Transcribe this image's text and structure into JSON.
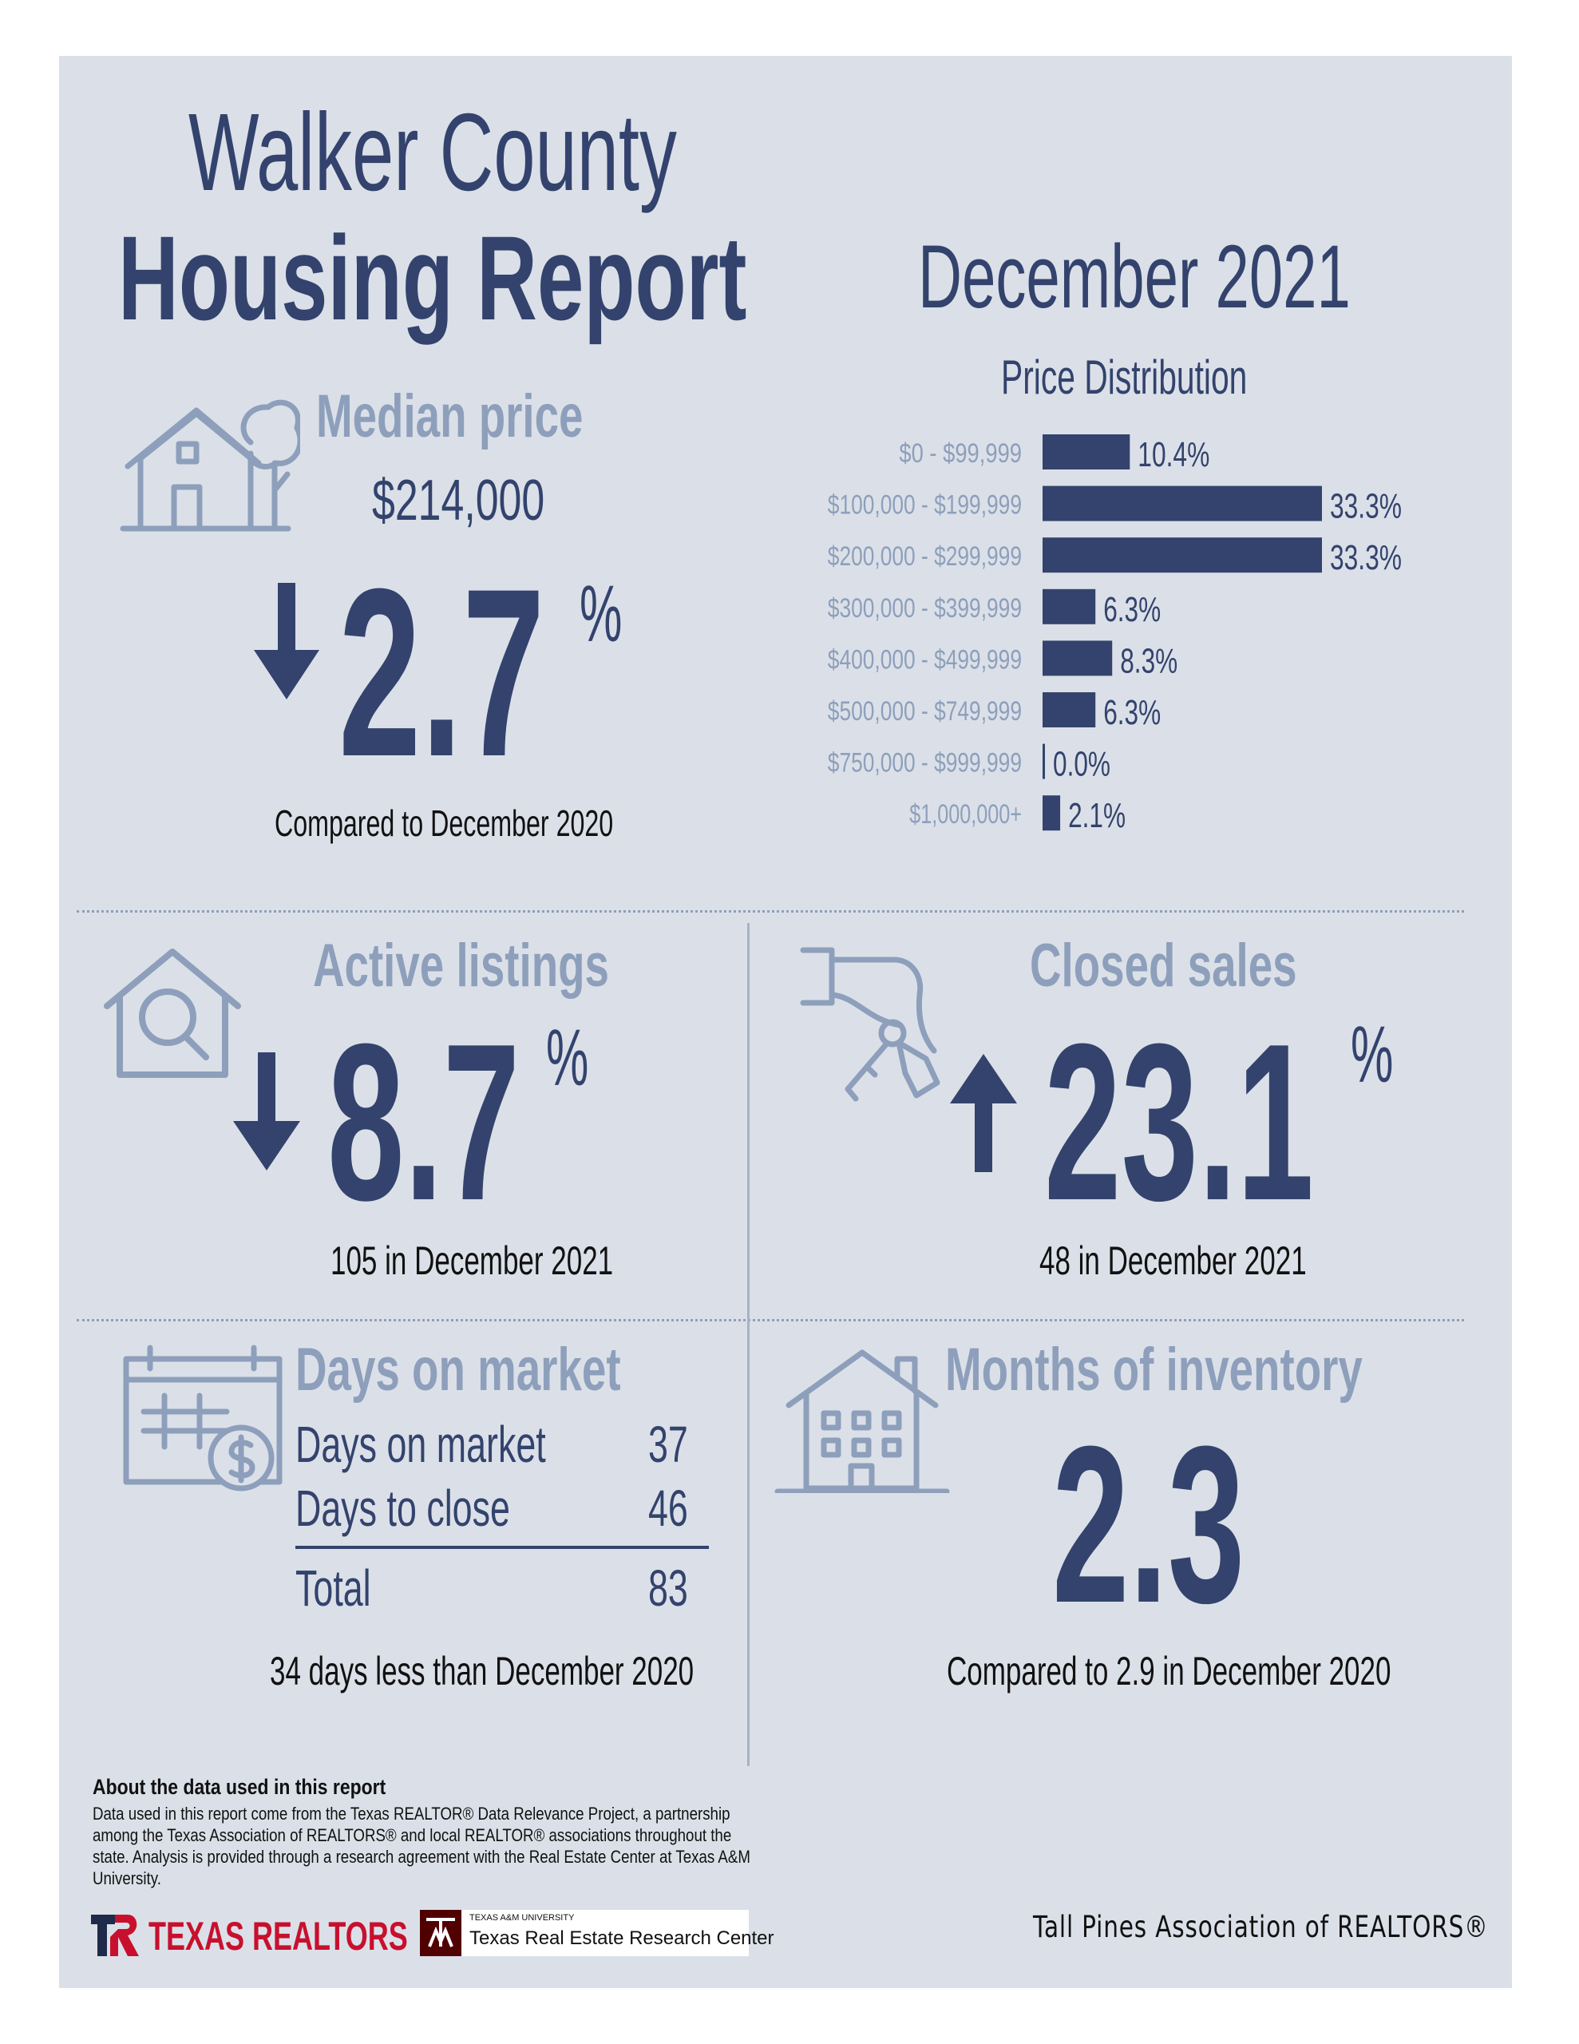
{
  "header": {
    "title_line1": "Walker County",
    "title_line2": "Housing Report",
    "period": "December 2021"
  },
  "median_price": {
    "label": "Median price",
    "value": "$214,000",
    "change": "2.7",
    "change_unit": "%",
    "direction": "down",
    "comparison": "Compared to December 2020"
  },
  "chart_data": {
    "type": "bar",
    "orientation": "horizontal",
    "title": "Price Distribution",
    "categories": [
      "$0 - $99,999",
      "$100,000 - $199,999",
      "$200,000 - $299,999",
      "$300,000 - $399,999",
      "$400,000 - $499,999",
      "$500,000 - $749,999",
      "$750,000 - $999,999",
      "$1,000,000+"
    ],
    "values": [
      10.4,
      33.3,
      33.3,
      6.3,
      8.3,
      6.3,
      0.0,
      2.1
    ],
    "value_labels": [
      "10.4%",
      "33.3%",
      "33.3%",
      "6.3%",
      "8.3%",
      "6.3%",
      "0.0%",
      "2.1%"
    ],
    "bar_color": "#33436d"
  },
  "active_listings": {
    "label": "Active listings",
    "change": "8.7",
    "change_unit": "%",
    "direction": "down",
    "detail": "105 in December 2021"
  },
  "closed_sales": {
    "label": "Closed sales",
    "change": "23.1",
    "change_unit": "%",
    "direction": "up",
    "detail": "48 in December 2021"
  },
  "days_on_market": {
    "label": "Days on market",
    "rows": [
      {
        "label": "Days on market",
        "value": "37"
      },
      {
        "label": "Days to close",
        "value": "46"
      }
    ],
    "total_label": "Total",
    "total_value": "83",
    "comparison": "34 days less than December 2020"
  },
  "months_inventory": {
    "label": "Months of inventory",
    "value": "2.3",
    "comparison": "Compared to 2.9 in December 2020"
  },
  "footer": {
    "about_title": "About the data used in this report",
    "about_text": "Data used in this report come from the Texas REALTOR® Data Relevance Project, a partnership among the Texas Association of REALTORS® and local REALTOR® associations throughout the state. Analysis is provided through a research agreement with the Real Estate Center at Texas A&M University.",
    "logo_texas_realtors": "TEXAS REALTORS",
    "tamu_small": "TEXAS A&M UNIVERSITY",
    "tamu_center": "Texas Real Estate Research Center",
    "association": "Tall Pines Association of REALTORS®"
  },
  "colors": {
    "navy": "#33436d",
    "pale_blue": "#8d9fbb",
    "panel": "#dbe0e8",
    "realtors_red": "#c8102e",
    "tamu_maroon": "#500000"
  }
}
